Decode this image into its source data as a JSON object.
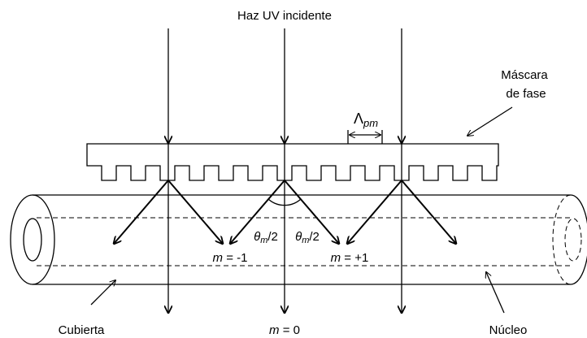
{
  "title": "Haz UV incidente",
  "mask_label": [
    "Máscara",
    "de fase"
  ],
  "period_label": {
    "symbol": "Λ",
    "subscript": "pm"
  },
  "angle_labels": [
    {
      "symbol": "θ",
      "subscript": "m",
      "rest": "/2"
    },
    {
      "symbol": "θ",
      "subscript": "m",
      "rest": "/2"
    }
  ],
  "orders": [
    {
      "variable": "m",
      "rest": " = -1"
    },
    {
      "variable": "m",
      "rest": " = 0"
    },
    {
      "variable": "m",
      "rest": " = +1"
    }
  ],
  "cladding_label": "Cubierta",
  "core_label": "Núcleo"
}
